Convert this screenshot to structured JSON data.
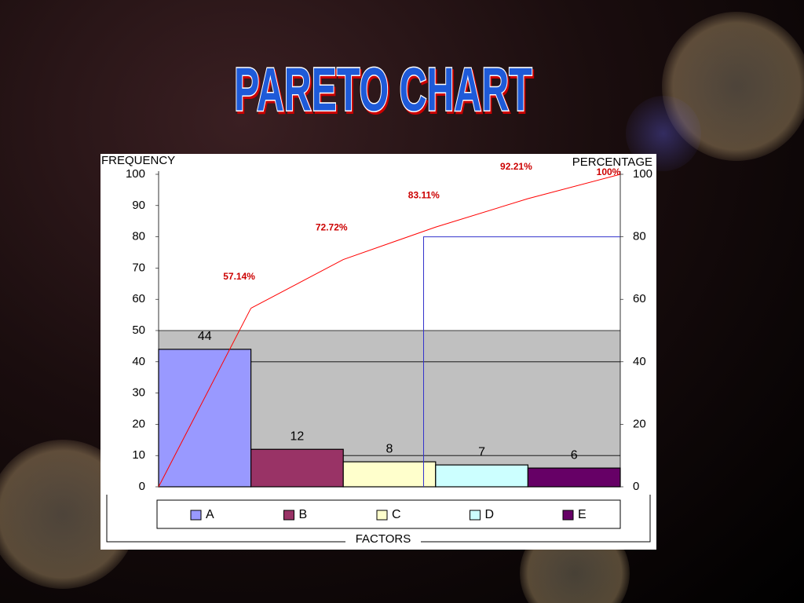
{
  "chart_data": {
    "type": "pareto",
    "title": "PARETO CHART",
    "y_label": "FREQUENCY",
    "y2_label": "PERCENTAGE",
    "x_label": "FACTORS",
    "categories": [
      "A",
      "B",
      "C",
      "D",
      "E"
    ],
    "values": [
      44,
      12,
      8,
      7,
      6
    ],
    "colors": [
      "#9999ff",
      "#993366",
      "#ffffcc",
      "#ccffff",
      "#660066"
    ],
    "line": {
      "axis": "y2",
      "color": "#ff0000",
      "values": [
        57.14,
        72.72,
        83.11,
        92.21,
        100
      ],
      "value_labels": [
        "57.14%",
        "72.72%",
        "83.11%",
        "92.21%",
        "100%"
      ]
    },
    "ylim": [
      0,
      100
    ],
    "yticks": [
      0,
      10,
      20,
      30,
      40,
      50,
      60,
      70,
      80,
      90,
      100
    ],
    "y2lim": [
      0,
      100
    ],
    "y2ticks": [
      0,
      20,
      40,
      60,
      80,
      100
    ]
  }
}
